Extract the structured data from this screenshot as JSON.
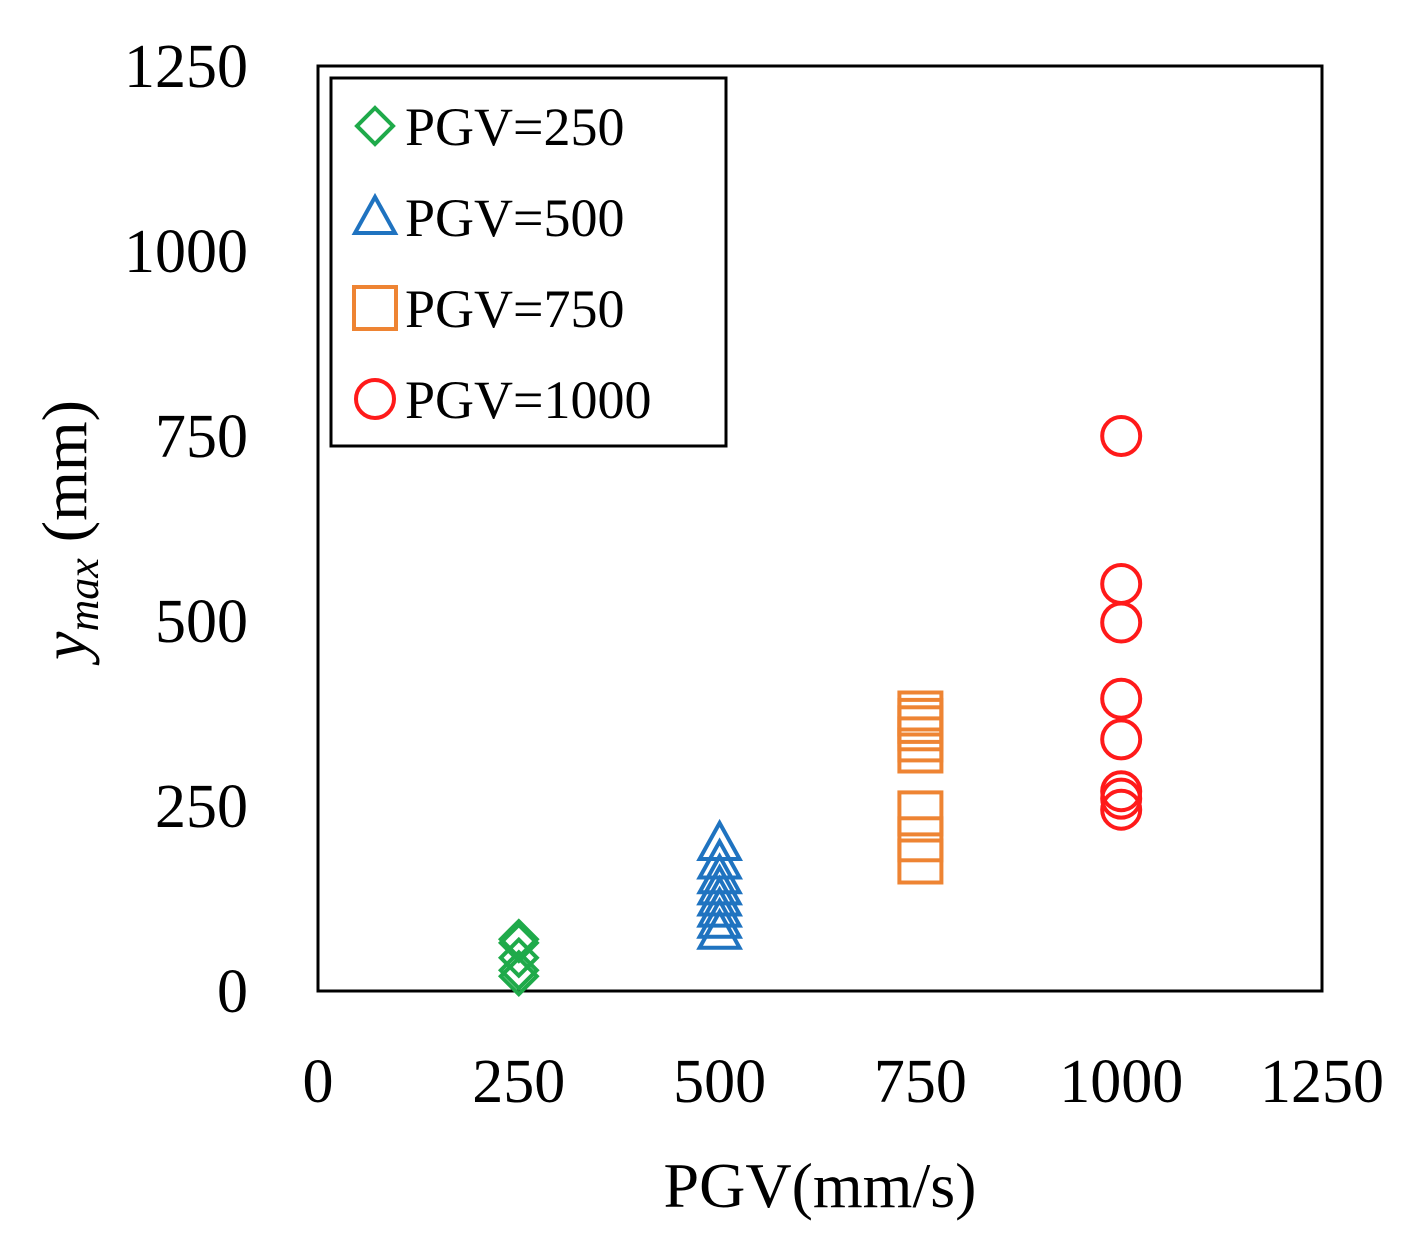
{
  "chart_data": {
    "type": "scatter",
    "title": "",
    "xlabel": "PGV(mm/s)",
    "ylabel": {
      "main": "y",
      "sub": "max",
      "unit": " (mm)"
    },
    "xlim": [
      0,
      1250
    ],
    "ylim": [
      0,
      1250
    ],
    "xticks": [
      0,
      250,
      500,
      750,
      1000,
      1250
    ],
    "yticks": [
      0,
      250,
      500,
      750,
      1000,
      1250
    ],
    "grid": false,
    "legend_position": "top-left",
    "series": [
      {
        "name": "PGV=250",
        "marker": "diamond",
        "color": "#1faa4a",
        "x": [
          250,
          250,
          250,
          250,
          250
        ],
        "y": [
          20,
          28,
          45,
          65,
          70
        ]
      },
      {
        "name": "PGV=500",
        "marker": "triangle",
        "color": "#1f73c0",
        "x": [
          500,
          500,
          500,
          500,
          500,
          500,
          500,
          500
        ],
        "y": [
          80,
          95,
          110,
          125,
          140,
          155,
          175,
          200
        ]
      },
      {
        "name": "PGV=750",
        "marker": "square",
        "color": "#ee8433",
        "x": [
          750,
          750,
          750,
          750,
          750,
          750,
          750,
          750
        ],
        "y": [
          175,
          205,
          240,
          325,
          340,
          355,
          365,
          375
        ]
      },
      {
        "name": "PGV=1000",
        "marker": "circle",
        "color": "#ff1a1a",
        "x": [
          1000,
          1000,
          1000,
          1000,
          1000,
          1000,
          1000,
          1000
        ],
        "y": [
          245,
          260,
          270,
          340,
          395,
          498,
          550,
          750
        ]
      }
    ]
  }
}
